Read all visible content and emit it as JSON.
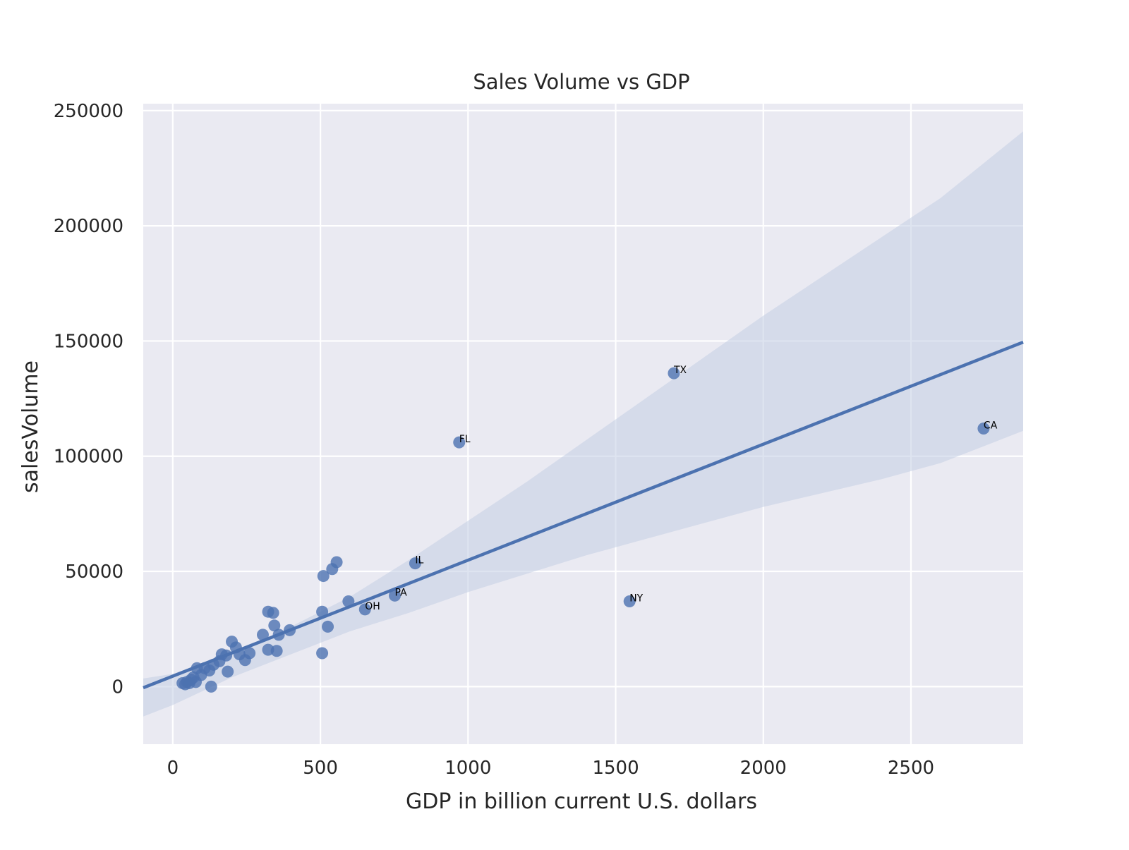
{
  "chart_data": {
    "type": "scatter",
    "title": "Sales Volume vs GDP",
    "xlabel": "GDP in billion current U.S. dollars",
    "ylabel": "salesVolume",
    "xlim": [
      -100,
      2880
    ],
    "ylim": [
      -25000,
      253000
    ],
    "x_ticks": [
      0,
      500,
      1000,
      1500,
      2000,
      2500
    ],
    "y_ticks": [
      0,
      50000,
      100000,
      150000,
      200000,
      250000
    ],
    "x_tick_labels": [
      "0",
      "500",
      "1000",
      "1500",
      "2000",
      "2500"
    ],
    "y_tick_labels": [
      "0",
      "50000",
      "100000",
      "150000",
      "200000",
      "250000"
    ],
    "grid": true,
    "colors": {
      "background": "#eaeaf2",
      "points": "#4c72b0",
      "regression_line": "#4c72b0",
      "confidence_band": "#c3cde3",
      "grid": "#ffffff"
    },
    "regression": {
      "x": [
        -100,
        2880
      ],
      "y": [
        -500,
        149500
      ]
    },
    "confidence_band": {
      "x": [
        -100,
        0,
        200,
        400,
        600,
        800,
        1000,
        1200,
        1400,
        1600,
        1800,
        2000,
        2200,
        2400,
        2600,
        2880
      ],
      "lower": [
        -13000,
        -8000,
        4000,
        14000,
        24000,
        32000,
        41000,
        49000,
        57000,
        64000,
        71000,
        78000,
        84000,
        90000,
        97000,
        111000
      ],
      "upper": [
        3500,
        5500,
        14000,
        26000,
        39000,
        55000,
        72000,
        89000,
        107000,
        125000,
        143000,
        161000,
        178000,
        195000,
        212000,
        241000
      ]
    },
    "points": [
      {
        "x": 2746,
        "y": 112000,
        "label": "CA"
      },
      {
        "x": 1697,
        "y": 136000,
        "label": "TX"
      },
      {
        "x": 1547,
        "y": 37000,
        "label": "NY"
      },
      {
        "x": 970,
        "y": 106000,
        "label": "FL"
      },
      {
        "x": 821,
        "y": 53500,
        "label": "IL"
      },
      {
        "x": 752,
        "y": 39500,
        "label": "PA"
      },
      {
        "x": 651,
        "y": 33500,
        "label": "OH"
      },
      {
        "x": 595,
        "y": 37000
      },
      {
        "x": 555,
        "y": 54000
      },
      {
        "x": 540,
        "y": 51000
      },
      {
        "x": 525,
        "y": 26000
      },
      {
        "x": 510,
        "y": 48000
      },
      {
        "x": 506,
        "y": 32500
      },
      {
        "x": 506,
        "y": 14500
      },
      {
        "x": 396,
        "y": 24500
      },
      {
        "x": 359,
        "y": 22500
      },
      {
        "x": 352,
        "y": 15500
      },
      {
        "x": 344,
        "y": 26500
      },
      {
        "x": 340,
        "y": 32000
      },
      {
        "x": 323,
        "y": 32500
      },
      {
        "x": 323,
        "y": 16000
      },
      {
        "x": 305,
        "y": 22500
      },
      {
        "x": 260,
        "y": 14500
      },
      {
        "x": 245,
        "y": 11500
      },
      {
        "x": 226,
        "y": 14000
      },
      {
        "x": 214,
        "y": 17000
      },
      {
        "x": 200,
        "y": 19500
      },
      {
        "x": 186,
        "y": 6500
      },
      {
        "x": 181,
        "y": 13500
      },
      {
        "x": 166,
        "y": 14000
      },
      {
        "x": 158,
        "y": 11000
      },
      {
        "x": 138,
        "y": 9500
      },
      {
        "x": 130,
        "y": 0
      },
      {
        "x": 124,
        "y": 7000
      },
      {
        "x": 108,
        "y": 8000
      },
      {
        "x": 96,
        "y": 5000
      },
      {
        "x": 82,
        "y": 8000
      },
      {
        "x": 78,
        "y": 2000
      },
      {
        "x": 70,
        "y": 4000
      },
      {
        "x": 62,
        "y": 3000
      },
      {
        "x": 56,
        "y": 1500
      },
      {
        "x": 48,
        "y": 2000
      },
      {
        "x": 42,
        "y": 1000
      },
      {
        "x": 33,
        "y": 1500
      }
    ]
  }
}
